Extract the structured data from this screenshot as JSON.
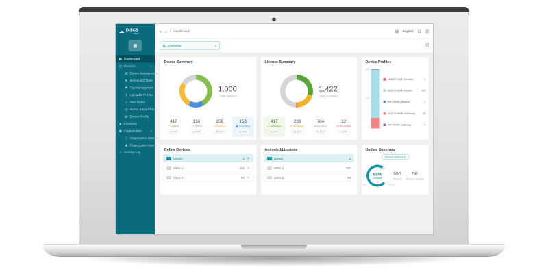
{
  "theme": {
    "sidebar": "#0a6b7c",
    "sidebar_active": "#024f5d",
    "accent": "#1593a4",
    "content_bg": "#f0f0f0"
  },
  "sidebar": {
    "logo": {
      "name": "D-ECS",
      "subtitle": "cloud",
      "glyph": "☁"
    },
    "org_button_glyph": "▦",
    "items": [
      {
        "label": "Dashboard",
        "glyph": "▦"
      },
      {
        "label": "Devices",
        "glyph": "◫",
        "chevron": "∨"
      },
      {
        "label": "Device Management",
        "glyph": "▥"
      },
      {
        "label": "Scheduled Tasks",
        "glyph": "⊞"
      },
      {
        "label": "Tag Management",
        "glyph": "⚑"
      },
      {
        "label": "Upload OTA Files",
        "glyph": "↥"
      },
      {
        "label": "Alert Rules",
        "glyph": "⚠"
      },
      {
        "label": "Status Report Time",
        "glyph": "◷"
      },
      {
        "label": "Device Profile",
        "glyph": "▤"
      },
      {
        "label": "Licenses",
        "glyph": "◈"
      },
      {
        "label": "Organization",
        "glyph": "▣",
        "chevron": "∨"
      },
      {
        "label": "Organization Details",
        "glyph": "ⓘ"
      },
      {
        "label": "Organization Users",
        "glyph": "♟"
      },
      {
        "label": "Activity Log",
        "glyph": "≡"
      }
    ]
  },
  "topbar": {
    "collapse_glyph": "«",
    "home_glyph": "⌂",
    "breadcrumb": {
      "separator": "/",
      "page": "Dashboard"
    },
    "language": "English",
    "org_filter": {
      "glyph": "▤",
      "label": "Overview",
      "chevron": "∨"
    }
  },
  "cards": {
    "device_summary": {
      "title": "Device Summary",
      "total": "1,000",
      "total_label": "Total Devices",
      "stats": [
        {
          "value": "417",
          "label": "Online",
          "glyph": "◠",
          "pct": "41.70%",
          "color": "#6fae3e"
        },
        {
          "value": "166",
          "label": "Offline",
          "glyph": "◠",
          "pct": "16.60%",
          "color": "#9e9e9e"
        },
        {
          "value": "259",
          "label": "Inactive",
          "glyph": "◷",
          "pct": "25.90%",
          "color": "#e8a426"
        },
        {
          "value": "158",
          "label": "Inventory",
          "glyph": "▣",
          "pct": "15.80%",
          "color": "#4a90d9"
        }
      ]
    },
    "license_summary": {
      "title": "License Summary",
      "total": "1,422",
      "total_label": "Total Licenses",
      "stats": [
        {
          "value": "417",
          "label": "Activated",
          "glyph": "✓",
          "pct": "29.32%",
          "color": "#5aa43c"
        },
        {
          "value": "289",
          "label": "Available",
          "glyph": "⟳",
          "pct": "20.32%",
          "color": "#e8a426"
        },
        {
          "value": "704",
          "label": "Expired",
          "glyph": "⊘",
          "pct": "49.51%",
          "color": "#8a8a8a"
        },
        {
          "value": "12",
          "label": "Reusable",
          "glyph": "↺",
          "pct": "0.84%",
          "color": "#e05c5c"
        }
      ]
    },
    "device_profiles": {
      "title": "Device Profiles",
      "y_ticks": [
        "500",
        "250",
        "0"
      ],
      "legend": [
        {
          "label": "4G/LTE M2M Modem",
          "value": "1",
          "color": "#e25555"
        },
        {
          "label": "4G/LTE M2M Router",
          "value": "438",
          "color": "#a9dce7"
        },
        {
          "label": "WiFi M2M Modem",
          "value": "1",
          "color": "#4a90d9"
        },
        {
          "label": "4G/LTE M2M Gateway",
          "value": "98",
          "color": "#ef8585"
        },
        {
          "label": "WiFi M2M Gateway",
          "value": "4",
          "color": "#9b59b6"
        }
      ]
    },
    "online_devices": {
      "title": "Online Devices",
      "rows": [
        {
          "name": "DEMO",
          "value": "1"
        },
        {
          "name": "ORG-1",
          "value": "300"
        },
        {
          "name": "ORG-2",
          "value": "80"
        }
      ]
    },
    "activated_licenses": {
      "title": "Activated/Licenses",
      "rows": [
        {
          "name": "DEMO",
          "value": "1"
        },
        {
          "name": "ORG-1",
          "value": "300"
        },
        {
          "name": "ORG-2",
          "value": "99"
        }
      ]
    },
    "update_summary": {
      "title": "Update Summary",
      "tag": "Device Firmware",
      "gauge": {
        "value": "95%",
        "label": "Updated",
        "min": "0%",
        "max": "100%"
      },
      "stats": [
        {
          "value": "950",
          "label": "Newest"
        },
        {
          "value": "50",
          "label": "Need to Update"
        }
      ]
    }
  },
  "chart_data": [
    {
      "type": "pie",
      "variant": "donut",
      "title": "Device Summary",
      "center_value": 1000,
      "center_label": "Total Devices",
      "segments": [
        {
          "label": "Online",
          "value": 417,
          "pct": 41.7,
          "color": "#84bd4e"
        },
        {
          "label": "Inventory",
          "value": 158,
          "pct": 15.8,
          "color": "#4a90d9"
        },
        {
          "label": "Inactive",
          "value": 259,
          "pct": 25.9,
          "color": "#f5b935"
        },
        {
          "label": "Offline",
          "value": 166,
          "pct": 16.6,
          "color": "#d5d5d5"
        }
      ]
    },
    {
      "type": "pie",
      "variant": "donut",
      "title": "License Summary",
      "center_value": 1422,
      "center_label": "Total Licenses",
      "segments": [
        {
          "label": "Activated",
          "value": 417,
          "pct": 29.32,
          "color": "#5aa43c"
        },
        {
          "label": "Available",
          "value": 289,
          "pct": 20.32,
          "color": "#f0b429"
        },
        {
          "label": "Reusable",
          "value": 12,
          "pct": 0.84,
          "color": "#e05c5c"
        },
        {
          "label": "Expired",
          "value": 704,
          "pct": 49.51,
          "color": "#d5d5d5"
        }
      ]
    },
    {
      "type": "bar",
      "variant": "stacked-single",
      "title": "Device Profiles",
      "ylim": [
        0,
        550
      ],
      "y_ticks": [
        500,
        250,
        0
      ],
      "segments_bottom_up": [
        {
          "label": "4G/LTE M2M Gateway",
          "value": 98,
          "color": "#ef8585"
        },
        {
          "label": "4G/LTE M2M Router",
          "value": 438,
          "color": "#a9dce7"
        },
        {
          "label": "WiFi M2M Gateway",
          "value": 4,
          "color": "#9b59b6"
        },
        {
          "label": "4G/LTE M2M Modem",
          "value": 1,
          "color": "#e25555"
        },
        {
          "label": "WiFi M2M Modem",
          "value": 1,
          "color": "#4a90d9"
        }
      ]
    },
    {
      "type": "gauge",
      "title": "Update Summary",
      "value": 95,
      "max": 100,
      "unit": "%",
      "label": "Updated",
      "color": "#1593a4"
    }
  ]
}
